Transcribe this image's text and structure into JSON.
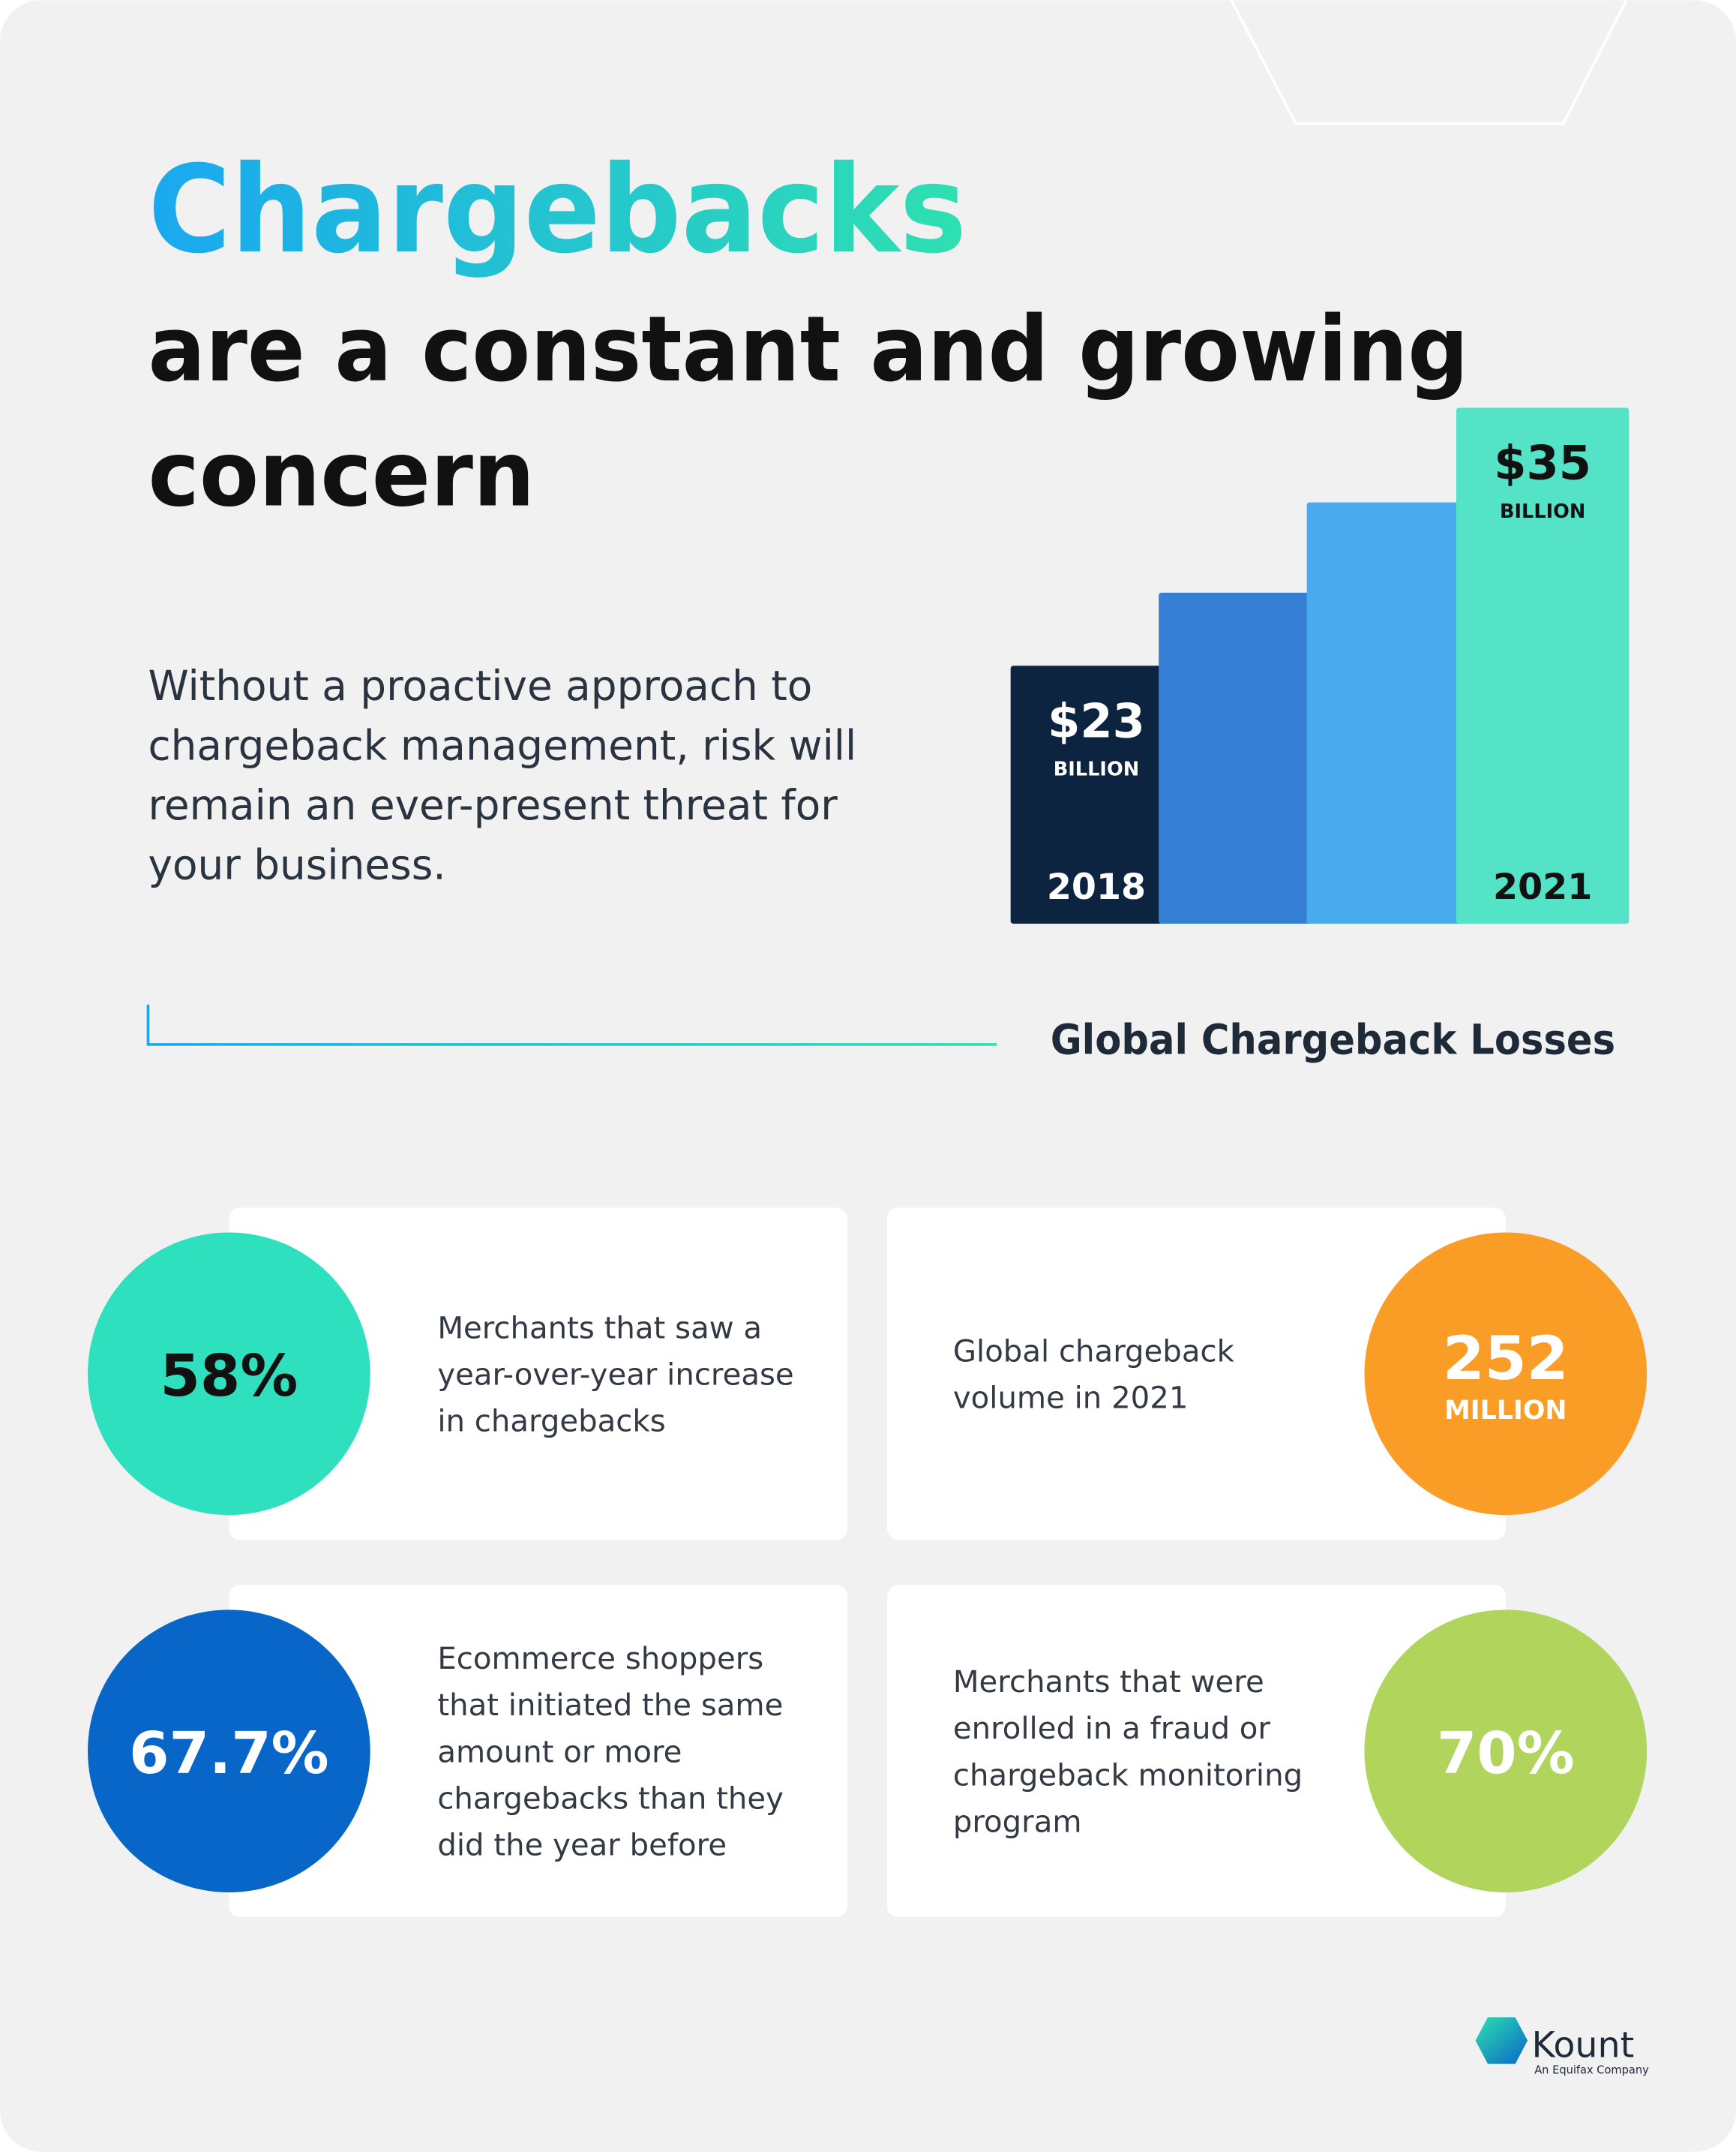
{
  "header": {
    "title": "Chargebacks",
    "subtitle_lines": [
      "are a constant and growing",
      "concern"
    ],
    "body_lines": [
      "Without a proactive approach to",
      "chargeback management, risk will",
      "remain an ever-present threat for",
      "your business."
    ]
  },
  "chart_data": {
    "type": "bar",
    "title": "Global Chargeback Losses",
    "categories": [
      "2018",
      null,
      null,
      "2021"
    ],
    "values": [
      23,
      26.4,
      30.6,
      35
    ],
    "value_labels": [
      "$23",
      null,
      null,
      "$35"
    ],
    "value_unit": "BILLION",
    "colors": [
      "#0d2440",
      "#3580d4",
      "#4aaaee",
      "#55e3c7"
    ],
    "ylim": [
      11,
      35
    ]
  },
  "stats": [
    {
      "value": "58%",
      "color": "#2ee0bd",
      "lines": [
        "Merchants that saw a",
        "year-over-year increase",
        "in chargebacks"
      ]
    },
    {
      "value": "252",
      "unit": "MILLION",
      "color": "#f99d26",
      "lines": [
        "Global chargeback",
        "volume in 2021"
      ]
    },
    {
      "value": "67.7%",
      "color": "#0866c8",
      "lines": [
        "Ecommerce shoppers",
        "that initiated the same",
        "amount or more",
        "chargebacks than they",
        "did the year before"
      ]
    },
    {
      "value": "70%",
      "color": "#b0d45c",
      "lines": [
        "Merchants that were",
        "enrolled in a fraud or",
        "chargeback monitoring",
        "program"
      ]
    }
  ],
  "logo": {
    "name": "Kount",
    "tagline": "An Equifax Company"
  }
}
